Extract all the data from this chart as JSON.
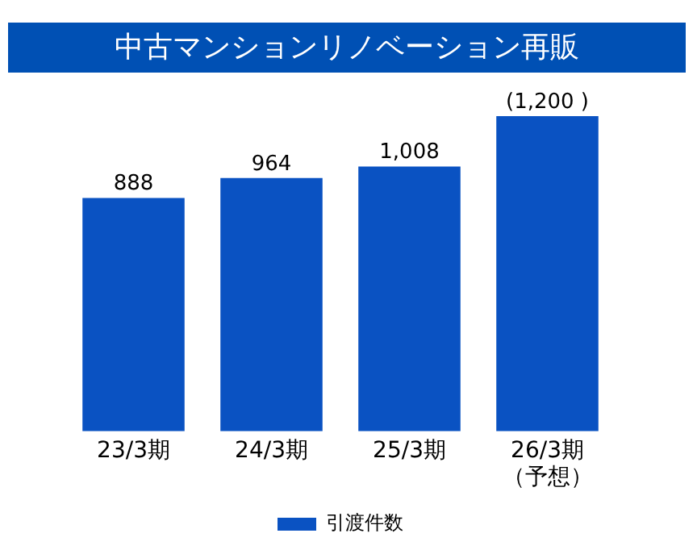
{
  "chart_data": {
    "type": "bar",
    "title": "中古マンションリノベーション再販",
    "categories": [
      "23/3期",
      "24/3期",
      "25/3期",
      "26/3期（予想）"
    ],
    "series": [
      {
        "name": "引渡件数",
        "color": "#0a52c2",
        "values": [
          888,
          964,
          1008,
          1200
        ],
        "value_labels": [
          "888",
          "964",
          "1,008",
          "(1,200 )"
        ]
      }
    ],
    "legend": "bottom",
    "grid": false
  }
}
